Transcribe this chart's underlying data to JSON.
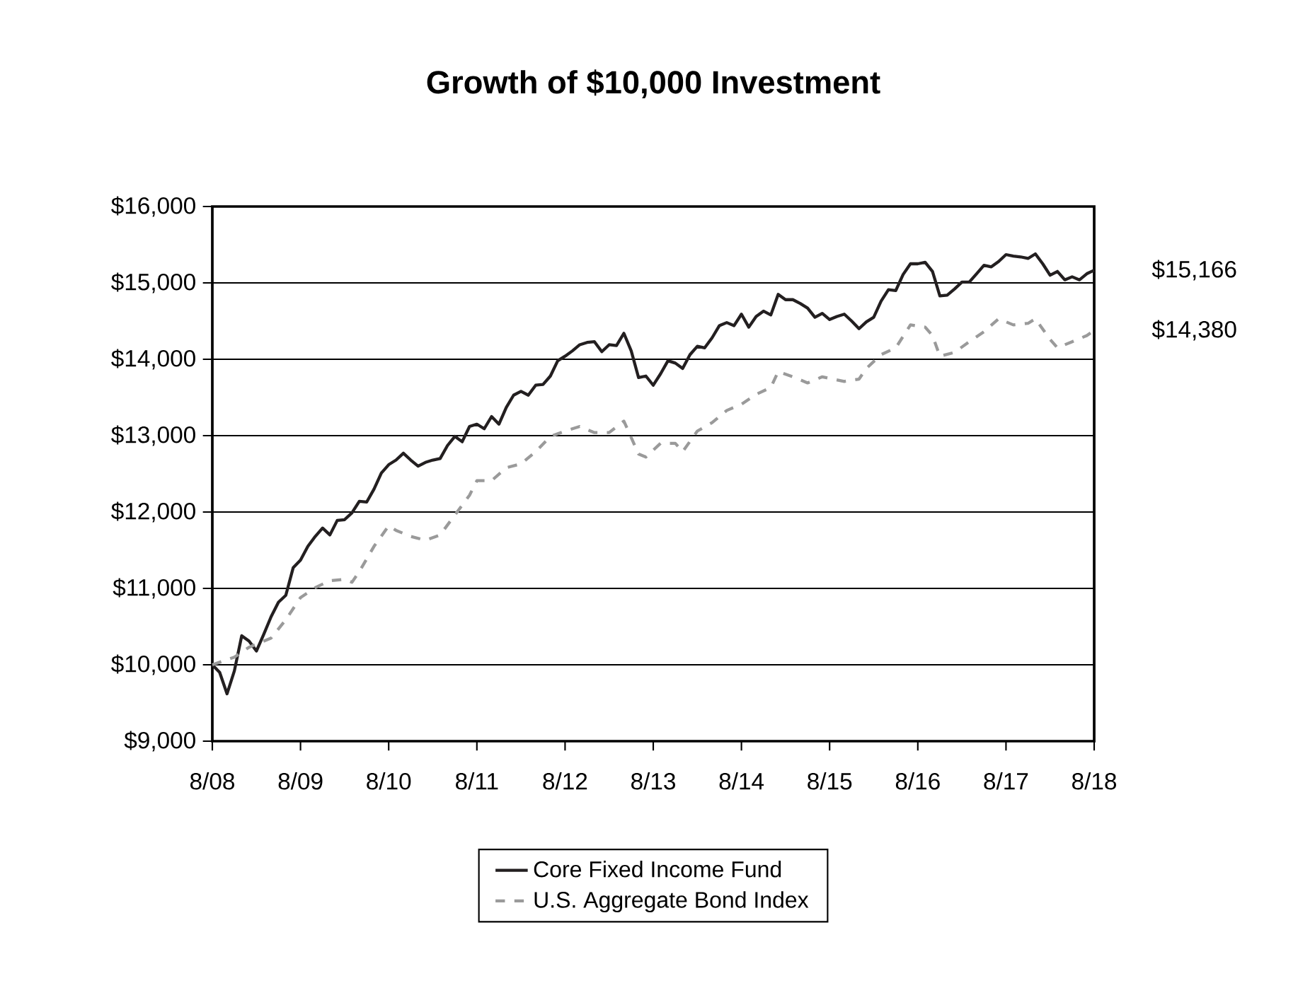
{
  "chart_data": {
    "type": "line",
    "title": "Growth of $10,000 Investment",
    "xlim": [
      "2008-08",
      "2018-08"
    ],
    "xticks": [
      {
        "value": "2008-08",
        "label": "8/08"
      },
      {
        "value": "2009-08",
        "label": "8/09"
      },
      {
        "value": "2010-08",
        "label": "8/10"
      },
      {
        "value": "2011-08",
        "label": "8/11"
      },
      {
        "value": "2012-08",
        "label": "8/12"
      },
      {
        "value": "2013-08",
        "label": "8/13"
      },
      {
        "value": "2014-08",
        "label": "8/14"
      },
      {
        "value": "2015-08",
        "label": "8/15"
      },
      {
        "value": "2016-08",
        "label": "8/16"
      },
      {
        "value": "2017-08",
        "label": "8/17"
      },
      {
        "value": "2018-08",
        "label": "8/18"
      }
    ],
    "ylim": [
      9000,
      16000
    ],
    "yticks": [
      {
        "value": 9000,
        "label": "$9,000"
      },
      {
        "value": 10000,
        "label": "$10,000"
      },
      {
        "value": 11000,
        "label": "$11,000"
      },
      {
        "value": 12000,
        "label": "$12,000"
      },
      {
        "value": 13000,
        "label": "$13,000"
      },
      {
        "value": 14000,
        "label": "$14,000"
      },
      {
        "value": 15000,
        "label": "$15,000"
      },
      {
        "value": 16000,
        "label": "$16,000"
      }
    ],
    "grid": "y",
    "legend": "bottom",
    "marker": "none",
    "series": [
      {
        "name": "Core Fixed Income Fund",
        "color": "#231f20",
        "line_style": "solid",
        "x": [
          "2008-08",
          "2008-09",
          "2008-10",
          "2008-11",
          "2008-12",
          "2009-01",
          "2009-02",
          "2009-03",
          "2009-04",
          "2009-05",
          "2009-06",
          "2009-07",
          "2009-08",
          "2009-09",
          "2009-10",
          "2009-11",
          "2009-12",
          "2010-01",
          "2010-02",
          "2010-03",
          "2010-04",
          "2010-05",
          "2010-06",
          "2010-07",
          "2010-08",
          "2010-09",
          "2010-10",
          "2010-11",
          "2010-12",
          "2011-01",
          "2011-02",
          "2011-03",
          "2011-04",
          "2011-05",
          "2011-06",
          "2011-07",
          "2011-08",
          "2011-09",
          "2011-10",
          "2011-11",
          "2011-12",
          "2012-01",
          "2012-02",
          "2012-03",
          "2012-04",
          "2012-05",
          "2012-06",
          "2012-07",
          "2012-08",
          "2012-09",
          "2012-10",
          "2012-11",
          "2012-12",
          "2013-01",
          "2013-02",
          "2013-03",
          "2013-04",
          "2013-05",
          "2013-06",
          "2013-07",
          "2013-08",
          "2013-09",
          "2013-10",
          "2013-11",
          "2013-12",
          "2014-01",
          "2014-02",
          "2014-03",
          "2014-04",
          "2014-05",
          "2014-06",
          "2014-07",
          "2014-08",
          "2014-09",
          "2014-10",
          "2014-11",
          "2014-12",
          "2015-01",
          "2015-02",
          "2015-03",
          "2015-04",
          "2015-05",
          "2015-06",
          "2015-07",
          "2015-08",
          "2015-09",
          "2015-10",
          "2015-11",
          "2015-12",
          "2016-01",
          "2016-02",
          "2016-03",
          "2016-04",
          "2016-05",
          "2016-06",
          "2016-07",
          "2016-08",
          "2016-09",
          "2016-10",
          "2016-11",
          "2016-12",
          "2017-01",
          "2017-02",
          "2017-03",
          "2017-04",
          "2017-05",
          "2017-06",
          "2017-07",
          "2017-08",
          "2017-09",
          "2017-10",
          "2017-11",
          "2017-12",
          "2018-01",
          "2018-02",
          "2018-03",
          "2018-04",
          "2018-05",
          "2018-06",
          "2018-07",
          "2018-08"
        ],
        "values": [
          10000,
          9900,
          9620,
          9920,
          10380,
          10310,
          10180,
          10400,
          10630,
          10820,
          10910,
          11270,
          11370,
          11550,
          11680,
          11790,
          11700,
          11890,
          11900,
          11990,
          12140,
          12130,
          12300,
          12510,
          12620,
          12680,
          12770,
          12680,
          12600,
          12650,
          12680,
          12700,
          12870,
          12990,
          12920,
          13120,
          13150,
          13090,
          13250,
          13150,
          13370,
          13530,
          13580,
          13530,
          13660,
          13670,
          13780,
          13980,
          14040,
          14110,
          14190,
          14220,
          14230,
          14100,
          14190,
          14180,
          14340,
          14110,
          13760,
          13780,
          13660,
          13810,
          13980,
          13950,
          13880,
          14060,
          14170,
          14150,
          14280,
          14440,
          14480,
          14440,
          14590,
          14420,
          14560,
          14630,
          14580,
          14850,
          14780,
          14780,
          14730,
          14670,
          14550,
          14600,
          14520,
          14560,
          14590,
          14500,
          14400,
          14490,
          14550,
          14760,
          14910,
          14900,
          15110,
          15250,
          15250,
          15270,
          15150,
          14830,
          14840,
          14920,
          15010,
          15010,
          15120,
          15230,
          15210,
          15280,
          15370,
          15350,
          15340,
          15320,
          15380,
          15250,
          15100,
          15150,
          15040,
          15080,
          15040,
          15120,
          15166
        ]
      },
      {
        "name": "U.S. Aggregate Bond Index",
        "color": "#9a9a9a",
        "line_style": "dashed",
        "x": [
          "2008-08",
          "2008-11",
          "2009-01",
          "2009-04",
          "2009-06",
          "2009-08",
          "2009-10",
          "2009-12",
          "2010-02",
          "2010-03",
          "2010-04",
          "2010-06",
          "2010-08",
          "2010-09",
          "2010-11",
          "2011-01",
          "2011-03",
          "2011-05",
          "2011-07",
          "2011-08",
          "2011-10",
          "2011-12",
          "2012-02",
          "2012-04",
          "2012-06",
          "2012-08",
          "2012-10",
          "2012-12",
          "2013-02",
          "2013-04",
          "2013-06",
          "2013-07",
          "2013-09",
          "2013-11",
          "2013-12",
          "2014-02",
          "2014-04",
          "2014-06",
          "2014-08",
          "2014-10",
          "2014-12",
          "2015-01",
          "2015-03",
          "2015-05",
          "2015-07",
          "2015-08",
          "2015-10",
          "2015-12",
          "2016-01",
          "2016-03",
          "2016-05",
          "2016-07",
          "2016-09",
          "2016-10",
          "2016-11",
          "2017-01",
          "2017-03",
          "2017-05",
          "2017-07",
          "2017-09",
          "2017-11",
          "2017-12",
          "2018-02",
          "2018-03",
          "2018-05",
          "2018-07",
          "2018-08"
        ],
        "values": [
          10000,
          10100,
          10230,
          10350,
          10590,
          10880,
          11010,
          11100,
          11120,
          11080,
          11220,
          11550,
          11820,
          11760,
          11680,
          11630,
          11700,
          11960,
          12220,
          12410,
          12410,
          12580,
          12630,
          12790,
          12990,
          13060,
          13120,
          13040,
          13040,
          13190,
          12760,
          12720,
          12900,
          12900,
          12790,
          13060,
          13170,
          13330,
          13410,
          13540,
          13630,
          13840,
          13770,
          13690,
          13770,
          13750,
          13710,
          13740,
          13880,
          14060,
          14150,
          14450,
          14420,
          14310,
          14040,
          14090,
          14230,
          14360,
          14530,
          14450,
          14470,
          14530,
          14260,
          14150,
          14230,
          14310,
          14380
        ]
      }
    ],
    "annotations": [
      {
        "text": "$15,166",
        "x": "2018-08",
        "y": 15166
      },
      {
        "text": "$14,380",
        "x": "2018-08",
        "y": 14380
      }
    ]
  }
}
